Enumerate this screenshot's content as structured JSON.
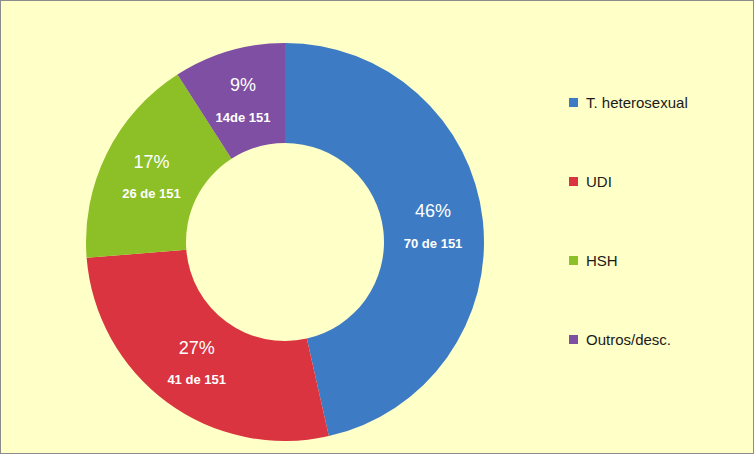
{
  "chart_data": {
    "type": "pie",
    "categories": [
      "T. heterosexual",
      "UDI",
      "HSH",
      "Outros/desc."
    ],
    "values": [
      46,
      27,
      17,
      9
    ],
    "value_labels": [
      "46%",
      "27%",
      "17%",
      "9%"
    ],
    "count_labels": [
      "70 de 151",
      "41 de 151",
      "26 de 151",
      "14de 151"
    ],
    "colors": [
      "#3d7cc4",
      "#d9343f",
      "#8dbf27",
      "#7f4fa3"
    ],
    "data_labels": true,
    "legend": "right"
  }
}
